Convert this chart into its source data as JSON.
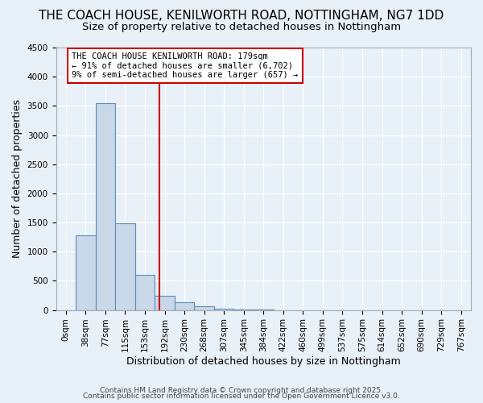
{
  "title": "THE COACH HOUSE, KENILWORTH ROAD, NOTTINGHAM, NG7 1DD",
  "subtitle": "Size of property relative to detached houses in Nottingham",
  "xlabel": "Distribution of detached houses by size in Nottingham",
  "ylabel": "Number of detached properties",
  "bar_color": "#c8d8e8",
  "bar_edge_color": "#5b8db8",
  "bin_labels": [
    "0sqm",
    "38sqm",
    "77sqm",
    "115sqm",
    "153sqm",
    "192sqm",
    "230sqm",
    "268sqm",
    "307sqm",
    "345sqm",
    "384sqm",
    "422sqm",
    "460sqm",
    "499sqm",
    "537sqm",
    "575sqm",
    "614sqm",
    "652sqm",
    "690sqm",
    "729sqm",
    "767sqm"
  ],
  "bar_heights": [
    0,
    1280,
    3540,
    1490,
    600,
    245,
    130,
    65,
    20,
    5,
    2,
    1,
    0,
    0,
    0,
    0,
    0,
    0,
    0,
    0,
    0
  ],
  "ylim": [
    0,
    4500
  ],
  "yticks": [
    0,
    500,
    1000,
    1500,
    2000,
    2500,
    3000,
    3500,
    4000,
    4500
  ],
  "vline_x": 4.72,
  "annotation_title": "THE COACH HOUSE KENILWORTH ROAD: 179sqm",
  "annotation_line1": "← 91% of detached houses are smaller (6,702)",
  "annotation_line2": "9% of semi-detached houses are larger (657) →",
  "annotation_box_color": "#ffffff",
  "annotation_box_edge": "#cc0000",
  "vline_color": "#cc0000",
  "footer1": "Contains HM Land Registry data © Crown copyright and database right 2025.",
  "footer2": "Contains public sector information licensed under the Open Government Licence v3.0.",
  "background_color": "#e8f0f8",
  "grid_color": "#ffffff",
  "title_fontsize": 11,
  "subtitle_fontsize": 9.5,
  "axis_label_fontsize": 9,
  "tick_fontsize": 7.5,
  "annotation_fontsize": 7.5,
  "footer_fontsize": 6.5
}
